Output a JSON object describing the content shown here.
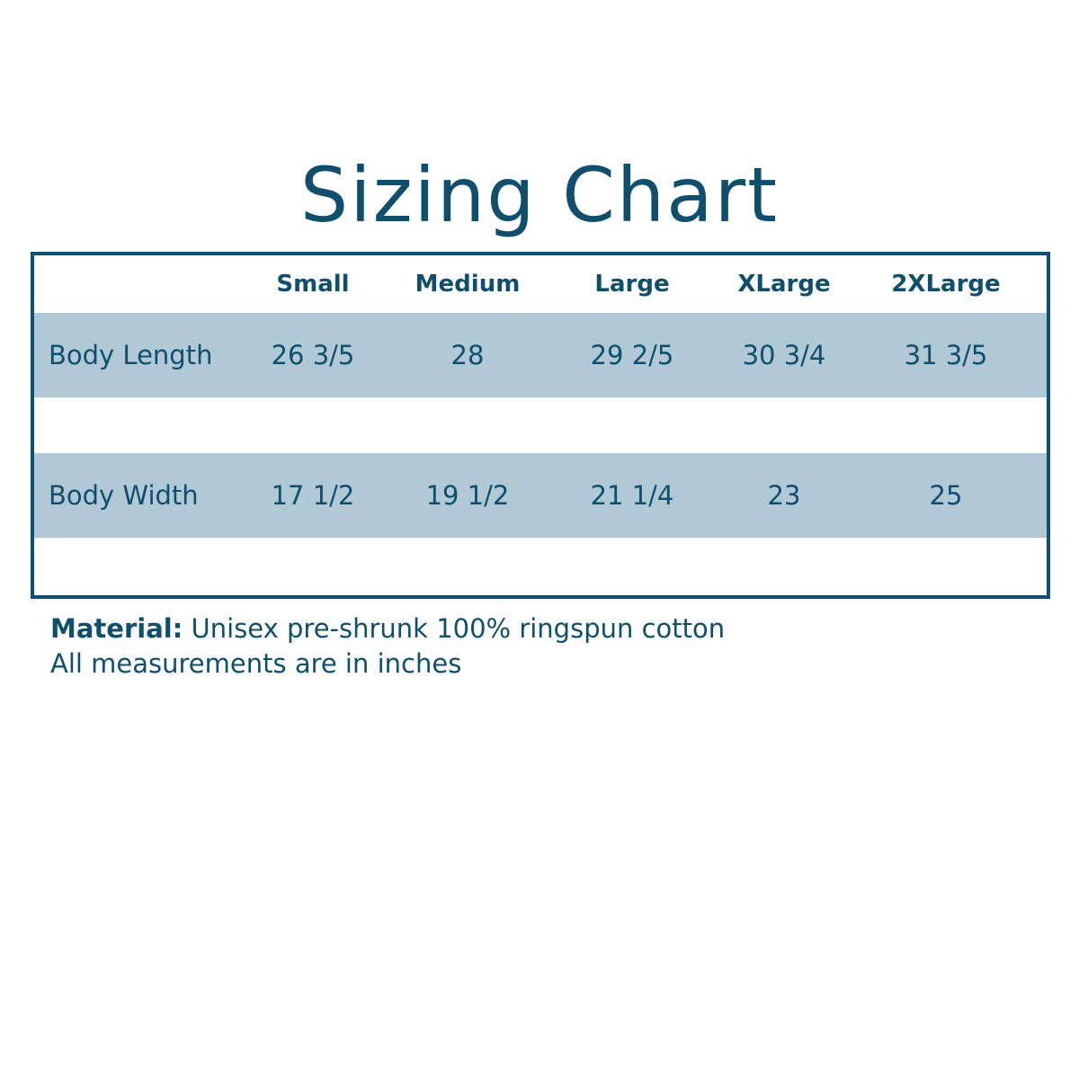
{
  "title": "Sizing Chart",
  "colors": {
    "primary": "#0e5273",
    "row_fill": "#b0c9d5"
  },
  "table": {
    "columns": [
      "Small",
      "Medium",
      "Large",
      "XLarge",
      "2XLarge"
    ],
    "rows": [
      {
        "label": "Body Length",
        "values": [
          "26 3/5",
          "28",
          "29 2/5",
          "30 3/4",
          "31 3/5"
        ]
      },
      {
        "label": "Body Width",
        "values": [
          "17 1/2",
          "19 1/2",
          "21 1/4",
          "23",
          "25"
        ]
      }
    ]
  },
  "notes": {
    "material_label": "Material:",
    "material_value": " Unisex pre-shrunk 100% ringspun cotton",
    "units": "All measurements are in inches"
  }
}
